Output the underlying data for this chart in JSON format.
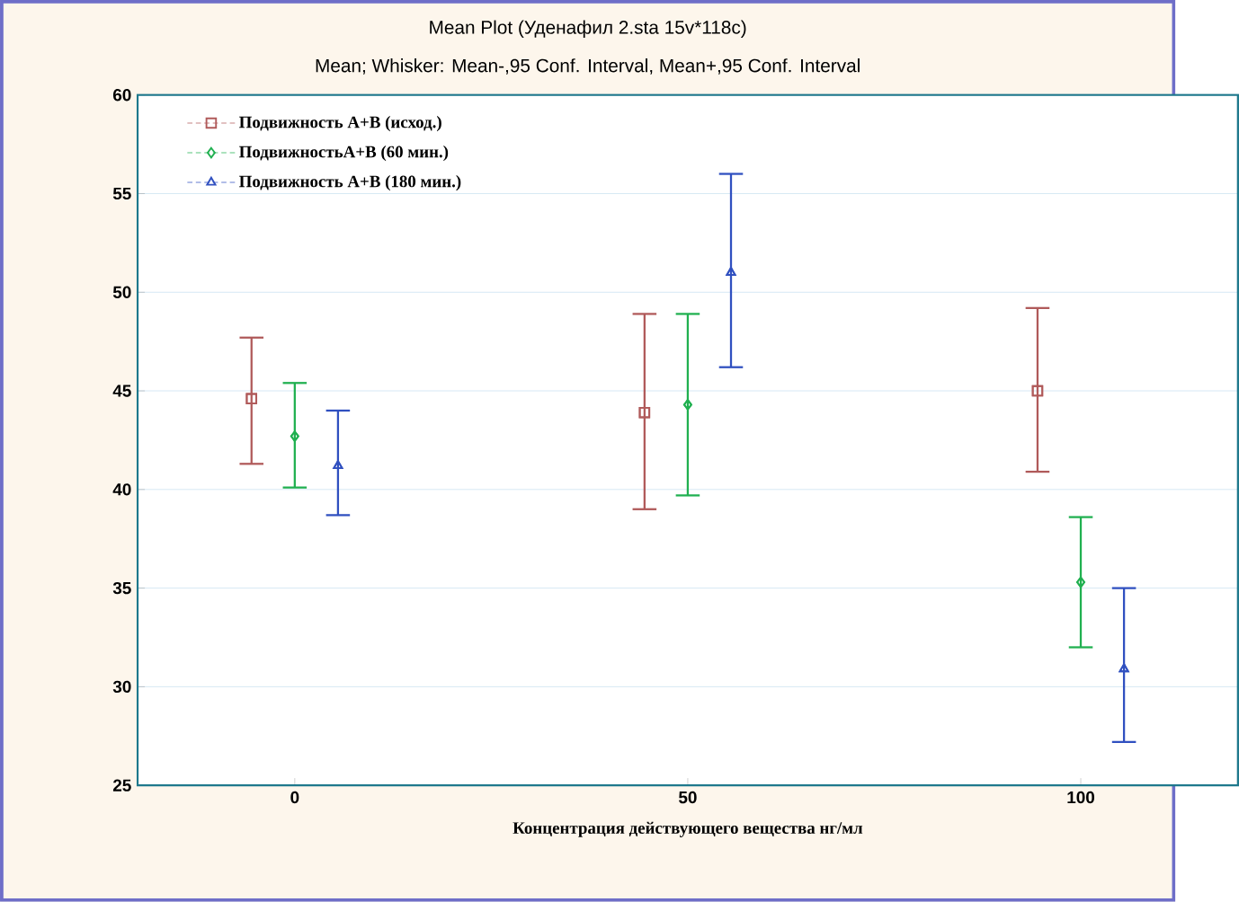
{
  "chart_data": {
    "type": "scatter",
    "title": "Mean Plot (Уденафил 2.sta 15v*118c)",
    "subtitle": "Mean;  Whisker: Mean-,95 Conf. Interval, Mean+,95 Conf. Interval",
    "xlabel": "Концентрация действующего вещества нг/мл",
    "categories": [
      "0",
      "50",
      "100"
    ],
    "ylim": [
      25,
      60
    ],
    "yticks": [
      25,
      30,
      35,
      40,
      45,
      50,
      55,
      60
    ],
    "grid": "y",
    "legend": "top left",
    "series": [
      {
        "name": "Подвижность A+B (исход.)",
        "color": "#b05a5a",
        "marker": "square",
        "values": [
          44.6,
          43.9,
          45.0
        ],
        "errors": [
          [
            41.3,
            47.7
          ],
          [
            39.0,
            48.9
          ],
          [
            40.9,
            49.2
          ]
        ]
      },
      {
        "name": "ПодвижностьA+B (60 мин.)",
        "color": "#20b050",
        "marker": "diamond",
        "values": [
          42.7,
          44.3,
          35.3
        ],
        "errors": [
          [
            40.1,
            45.4
          ],
          [
            39.7,
            48.9
          ],
          [
            32.0,
            38.6
          ]
        ]
      },
      {
        "name": "Подвижность A+B (180 мин.)",
        "color": "#3050c0",
        "marker": "triangle",
        "values": [
          41.2,
          51.0,
          30.9
        ],
        "errors": [
          [
            38.7,
            44.0
          ],
          [
            46.2,
            56.0
          ],
          [
            27.2,
            35.0
          ]
        ]
      }
    ]
  }
}
